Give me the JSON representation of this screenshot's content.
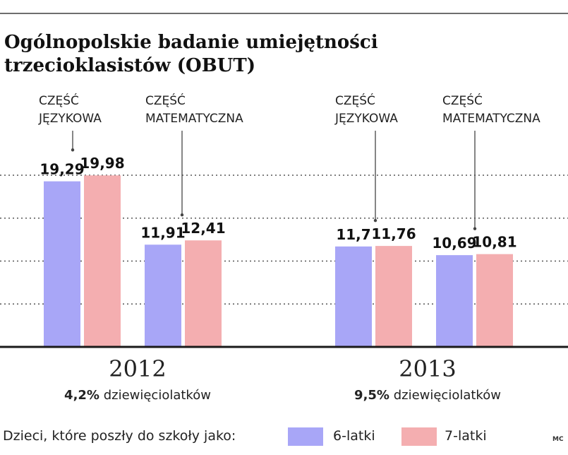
{
  "title": {
    "line1": "Ogólnopolskie badanie umiejętności",
    "line2": "trzecioklasistów (OBUT)"
  },
  "colors": {
    "six": "#a8a6f7",
    "seven": "#f4aeb0"
  },
  "chart_data": {
    "type": "bar",
    "groups": [
      {
        "year": "2012",
        "pct": "4,2%",
        "pct_text": "dziewięciolatków",
        "sections": [
          {
            "label": [
              "CZĘŚĆ",
              "JĘZYKOWA"
            ],
            "values": [
              19.29,
              19.98
            ],
            "labels": [
              "19,29",
              "19,98"
            ]
          },
          {
            "label": [
              "CZĘŚĆ",
              "MATEMATYCZNA"
            ],
            "values": [
              11.91,
              12.41
            ],
            "labels": [
              "11,91",
              "12,41"
            ]
          }
        ]
      },
      {
        "year": "2013",
        "pct": "9,5%",
        "pct_text": "dziewięciolatków",
        "sections": [
          {
            "label": [
              "CZĘŚĆ",
              "JĘZYKOWA"
            ],
            "values": [
              11.7,
              11.76
            ],
            "labels": [
              "11,7",
              "11,76"
            ]
          },
          {
            "label": [
              "CZĘŚĆ",
              "MATEMATYCZNA"
            ],
            "values": [
              10.69,
              10.81
            ],
            "labels": [
              "10,69",
              "10,81"
            ]
          }
        ]
      }
    ],
    "series": [
      {
        "name": "6-latki"
      },
      {
        "name": "7-latki"
      }
    ],
    "ylim": [
      0,
      20
    ],
    "gridlines": [
      5,
      10,
      15,
      20
    ],
    "legend": {
      "prefix": "Dzieci, które poszły do szkoły jako:",
      "position": "bottom"
    }
  },
  "credit": "MC"
}
